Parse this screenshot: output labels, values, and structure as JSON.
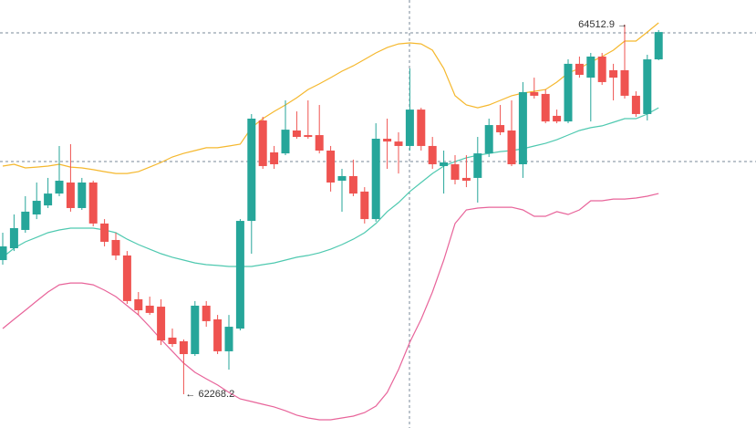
{
  "chart_data": {
    "type": "candlestick",
    "up_color": "#26a69a",
    "down_color": "#ef5350",
    "open": [
      63083,
      63155,
      63266,
      63360,
      63415,
      63487,
      63554,
      63399,
      63554,
      63305,
      63205,
      63111,
      62845,
      62806,
      62800,
      62612,
      62590,
      62512,
      62806,
      62723,
      62529,
      62667,
      63321,
      63931,
      63737,
      63731,
      63870,
      63842,
      63842,
      63748,
      63565,
      63593,
      63499,
      63332,
      63820,
      63803,
      63776,
      63997,
      63776,
      63654,
      63665,
      63582,
      63582,
      63731,
      63903,
      63870,
      63665,
      64103,
      64092,
      63959,
      63925,
      64275,
      64191,
      64319,
      64236,
      64236,
      64081,
      63970,
      64302
    ],
    "high": [
      63249,
      63360,
      63471,
      63554,
      63582,
      63776,
      63787,
      63582,
      63565,
      63332,
      63249,
      63138,
      62889,
      62861,
      62845,
      62667,
      62601,
      62834,
      62834,
      62750,
      62750,
      63332,
      63970,
      63953,
      63776,
      64053,
      63986,
      64053,
      64025,
      63776,
      63637,
      63693,
      63526,
      63914,
      63942,
      63859,
      64247,
      64008,
      63831,
      63748,
      63720,
      63720,
      63831,
      63942,
      64025,
      64053,
      64164,
      64191,
      64119,
      63997,
      64302,
      64319,
      64341,
      64341,
      64275,
      64512.9,
      64108,
      64330,
      64480
    ],
    "low": [
      63055,
      63138,
      63249,
      63332,
      63399,
      63471,
      63377,
      63388,
      63288,
      63166,
      63083,
      62817,
      62750,
      62750,
      62567,
      62556,
      62268.2,
      62501,
      62678,
      62512,
      62418,
      62656,
      63122,
      63637,
      63637,
      63720,
      63820,
      63820,
      63731,
      63499,
      63377,
      63471,
      63305,
      63316,
      63637,
      63609,
      63748,
      63748,
      63637,
      63487,
      63543,
      63526,
      63432,
      63709,
      63842,
      63654,
      63582,
      64064,
      63914,
      63914,
      63914,
      64191,
      63925,
      64147,
      64053,
      64064,
      63953,
      63931,
      64297
    ],
    "close": [
      63166,
      63277,
      63377,
      63443,
      63487,
      63565,
      63399,
      63554,
      63305,
      63194,
      63111,
      62834,
      62778,
      62762,
      62595,
      62573,
      62512,
      62806,
      62712,
      62529,
      62678,
      63321,
      63942,
      63654,
      63665,
      63875,
      63831,
      63831,
      63748,
      63554,
      63593,
      63487,
      63332,
      63820,
      63803,
      63776,
      63997,
      63776,
      63665,
      63676,
      63571,
      63565,
      63731,
      63903,
      63859,
      63665,
      64103,
      64081,
      63925,
      63925,
      64275,
      64208,
      64319,
      64164,
      64191,
      64081,
      63970,
      64302,
      64468
    ],
    "bands": [
      {
        "color": "#f5b82e",
        "values": [
          63654,
          63665,
          63643,
          63648,
          63654,
          63665,
          63648,
          63643,
          63632,
          63620,
          63609,
          63609,
          63620,
          63648,
          63676,
          63709,
          63731,
          63748,
          63765,
          63765,
          63776,
          63787,
          63887,
          63942,
          63986,
          64025,
          64069,
          64119,
          64153,
          64191,
          64230,
          64263,
          64302,
          64341,
          64374,
          64396,
          64402,
          64396,
          64358,
          64247,
          64081,
          64025,
          64008,
          64025,
          64053,
          64081,
          64097,
          64108,
          64119,
          64164,
          64219,
          64247,
          64286,
          64319,
          64358,
          64413,
          64413,
          64468,
          64524
        ]
      },
      {
        "color": "#4fc9b0",
        "values": [
          63100,
          63155,
          63194,
          63221,
          63249,
          63266,
          63277,
          63277,
          63277,
          63266,
          63249,
          63210,
          63177,
          63149,
          63122,
          63100,
          63083,
          63066,
          63055,
          63050,
          63044,
          63044,
          63044,
          63055,
          63066,
          63083,
          63100,
          63111,
          63127,
          63149,
          63177,
          63210,
          63249,
          63305,
          63377,
          63432,
          63499,
          63554,
          63609,
          63654,
          63681,
          63704,
          63720,
          63731,
          63742,
          63748,
          63759,
          63776,
          63792,
          63814,
          63842,
          63870,
          63887,
          63898,
          63920,
          63942,
          63942,
          63970,
          64008
        ]
      },
      {
        "color": "#e8649a",
        "values": [
          62667,
          62723,
          62778,
          62834,
          62889,
          62933,
          62944,
          62944,
          62933,
          62900,
          62861,
          62806,
          62750,
          62678,
          62601,
          62529,
          62457,
          62401,
          62362,
          62324,
          62279,
          62240,
          62224,
          62207,
          62191,
          62168,
          62141,
          62124,
          62113,
          62113,
          62124,
          62135,
          62157,
          62196,
          62279,
          62418,
          62584,
          62723,
          62889,
          63083,
          63305,
          63388,
          63399,
          63404,
          63404,
          63404,
          63388,
          63349,
          63349,
          63377,
          63360,
          63388,
          63443,
          63443,
          63454,
          63454,
          63460,
          63471,
          63487
        ]
      }
    ],
    "annotations": [
      {
        "value": 64512.9,
        "label": "64512.9 →"
      },
      {
        "value": 62268.2,
        "label": "← 62268.2"
      }
    ]
  }
}
